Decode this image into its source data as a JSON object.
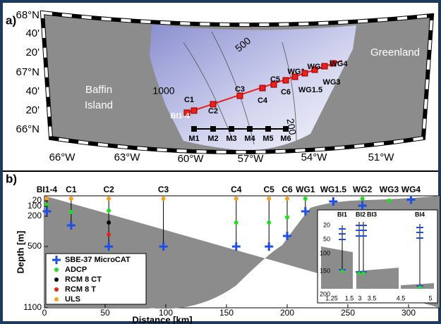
{
  "panel_a": {
    "label": "a)",
    "lat_labels": [
      "68°N",
      "40'",
      "20'",
      "67°N",
      "40'",
      "20'",
      "66°N"
    ],
    "lon_labels": [
      "66°W",
      "63°W",
      "60°W",
      "57°W",
      "54°W",
      "51°W"
    ],
    "places": [
      "Baffin",
      "Island",
      "Greenland"
    ],
    "contours": [
      "1000",
      "500",
      "200"
    ],
    "section": [
      "BI1-4",
      "C1",
      "C2",
      "C3",
      "C4",
      "C5",
      "C6",
      "WG1",
      "WG1.5",
      "WG2",
      "WG3",
      "WG4"
    ],
    "m_line": [
      "M1",
      "M2",
      "M3",
      "M4",
      "M5",
      "M6"
    ]
  },
  "panel_b": {
    "label": "b)",
    "moorings": [
      "BI1-4",
      "C1",
      "C2",
      "C3",
      "C4",
      "C5",
      "C6",
      "WG1",
      "WG1.5",
      "WG2",
      "WG3",
      "WG4"
    ],
    "ylabel": "Depth [m]",
    "xlabel": "Distance [km]",
    "yticks": [
      "20",
      "100",
      "200",
      "500",
      "1100"
    ],
    "xticks": [
      "0",
      "50",
      "100",
      "150",
      "200",
      "250",
      "300"
    ],
    "legend": [
      "SBE-37 MicroCAT",
      "ADCP",
      "RCM 8 CT",
      "RCM 8 T",
      "ULS"
    ],
    "inset": {
      "titles": [
        "BI1",
        "BI2",
        "BI3",
        "BI4"
      ],
      "yticks": [
        "20",
        "50",
        "100",
        "150",
        "200"
      ],
      "xticks": [
        "1.25",
        "1.5",
        "3",
        "3.5",
        "4.5",
        "5"
      ]
    }
  }
}
